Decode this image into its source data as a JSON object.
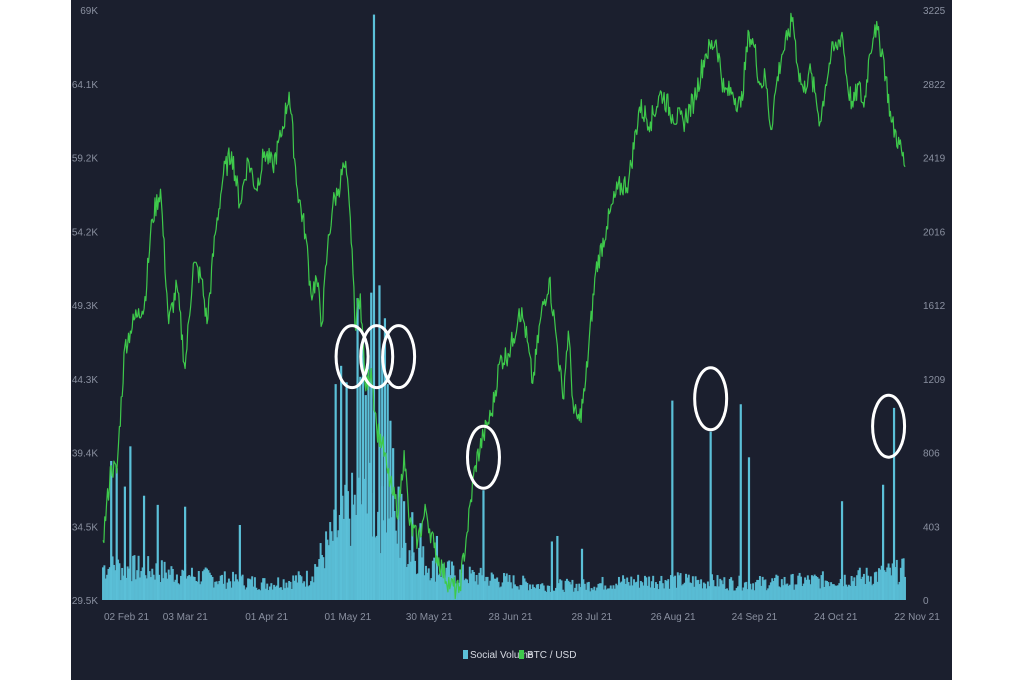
{
  "chart_data": {
    "type": "bar+line",
    "title": "",
    "xlabel": "",
    "ylabel_left": "",
    "ylabel_right": "",
    "x_ticks": [
      "02 Feb 21",
      "03 Mar 21",
      "01 Apr 21",
      "01 May 21",
      "30 May 21",
      "28 Jun 21",
      "28 Jul 21",
      "26 Aug 21",
      "24 Sep 21",
      "24 Oct 21",
      "22 Nov 21"
    ],
    "y_left_ticks": [
      "29.5K",
      "34.5K",
      "39.4K",
      "44.3K",
      "49.3K",
      "54.2K",
      "59.2K",
      "64.1K",
      "69K"
    ],
    "y_right_ticks": [
      "0",
      "403",
      "806",
      "1209",
      "1612",
      "2016",
      "2419",
      "2822",
      "3225"
    ],
    "y_left_range": [
      29500,
      69000
    ],
    "y_right_range": [
      0,
      3225
    ],
    "x_range_days": [
      0,
      293
    ],
    "grid": false,
    "legend_position": "bottom-center",
    "legend": [
      {
        "name": "Social Volume",
        "color": "#5bc0d8"
      },
      {
        "name": "BTC / USD",
        "color": "#3ec94b"
      }
    ],
    "btc_usd": {
      "axis": "left",
      "x": [
        0,
        3,
        5,
        8,
        10,
        13,
        15,
        18,
        21,
        24,
        27,
        30,
        33,
        36,
        38,
        41,
        44,
        47,
        50,
        53,
        56,
        59,
        62,
        65,
        68,
        71,
        74,
        76,
        78,
        80,
        82,
        84,
        86,
        88,
        89,
        91,
        92,
        94,
        96,
        98,
        100,
        102,
        104,
        106,
        108,
        110,
        112,
        115,
        118,
        121,
        124,
        127,
        130,
        133,
        136,
        139,
        142,
        145,
        148,
        150,
        152,
        154,
        157,
        160,
        163,
        166,
        168,
        170,
        172,
        174,
        176,
        180,
        184,
        188,
        192,
        196,
        200,
        204,
        208,
        212,
        216,
        220,
        224,
        227,
        230,
        233,
        236,
        238,
        240,
        242,
        244,
        246,
        248,
        250,
        252,
        254,
        256,
        258,
        260,
        262,
        264,
        266,
        268,
        270,
        272,
        274,
        276,
        278,
        280,
        282,
        285,
        288,
        291,
        293
      ],
      "values": [
        33500,
        38500,
        38000,
        46500,
        47500,
        49000,
        49000,
        55000,
        57000,
        48000,
        50500,
        45000,
        52000,
        51000,
        48000,
        54000,
        58000,
        59500,
        56000,
        59000,
        57000,
        59500,
        58500,
        60500,
        63500,
        57000,
        54000,
        50000,
        51000,
        48000,
        53000,
        56000,
        57000,
        58500,
        58000,
        53000,
        48000,
        50000,
        43500,
        45000,
        41000,
        40000,
        38000,
        36500,
        35500,
        39500,
        34500,
        33500,
        35500,
        33000,
        31500,
        30500,
        30000,
        34000,
        38500,
        40500,
        42000,
        45500,
        46000,
        47000,
        49000,
        48000,
        44000,
        48500,
        51000,
        46500,
        43000,
        47500,
        42000,
        41500,
        43500,
        51500,
        54500,
        57000,
        57500,
        62500,
        61500,
        63500,
        62000,
        61500,
        63000,
        66000,
        67000,
        63500,
        63500,
        62500,
        67500,
        66500,
        64000,
        64500,
        61000,
        64000,
        66000,
        67000,
        68500,
        65000,
        63500,
        65000,
        63500,
        61500,
        64000,
        66000,
        66500,
        67500,
        64000,
        62500,
        64000,
        62500,
        66000,
        68000,
        66000,
        61500,
        60000,
        58500
      ],
      "point_type": "sampled"
    },
    "social_volume": {
      "axis": "right",
      "baseline_days_sample": [
        0,
        15,
        30,
        45,
        60,
        75,
        85,
        90,
        95,
        100,
        105,
        110,
        120,
        130,
        145,
        160,
        175,
        190,
        205,
        220,
        235,
        250,
        265,
        280,
        293
      ],
      "baseline_values_sample": [
        180,
        170,
        140,
        110,
        90,
        120,
        360,
        470,
        560,
        480,
        380,
        300,
        180,
        140,
        110,
        80,
        80,
        100,
        110,
        100,
        90,
        100,
        110,
        130,
        160
      ],
      "spikes_days": [
        3,
        5,
        8,
        10,
        15,
        20,
        30,
        50,
        85,
        87,
        89,
        93,
        94,
        95,
        96,
        97,
        98,
        99,
        101,
        102,
        103,
        104,
        105,
        106,
        108,
        109,
        110,
        113,
        116,
        122,
        139,
        164,
        166,
        175,
        208,
        222,
        233,
        236,
        270,
        285,
        289
      ],
      "spikes_values": [
        760,
        720,
        620,
        840,
        570,
        520,
        510,
        410,
        1180,
        1280,
        1190,
        1650,
        1220,
        1420,
        1120,
        1340,
        1680,
        3200,
        1720,
        1330,
        1540,
        1180,
        980,
        830,
        620,
        580,
        540,
        480,
        420,
        350,
        600,
        320,
        350,
        280,
        1090,
        920,
        1070,
        780,
        540,
        630,
        1050
      ]
    },
    "annotations": [
      {
        "type": "circle",
        "at_day": 91,
        "value_right": 1330
      },
      {
        "type": "circle",
        "at_day": 100,
        "value_right": 1330
      },
      {
        "type": "circle",
        "at_day": 108,
        "value_right": 1330
      },
      {
        "type": "circle",
        "at_day": 139,
        "value_right": 780
      },
      {
        "type": "circle",
        "at_day": 222,
        "value_right": 1100
      },
      {
        "type": "circle",
        "at_day": 287,
        "value_right": 950
      }
    ]
  }
}
